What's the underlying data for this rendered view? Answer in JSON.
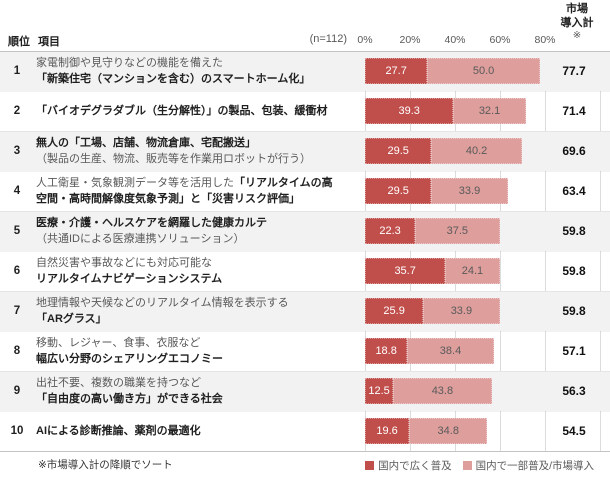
{
  "header": {
    "rank_label": "順位",
    "item_label": "項目",
    "sample_size": "(n=112)",
    "total_label_line1": "市場",
    "total_label_line2": "導入計",
    "total_label_note": "※"
  },
  "footnote": "※市場導入計の降順でソート",
  "legend": [
    {
      "label": "国内で広く普及",
      "color": "#c04f4c"
    },
    {
      "label": "国内で一部普及/市場導入",
      "color": "#dd9e9c"
    }
  ],
  "rows": [
    {
      "rank": "1",
      "lines": [
        [
          {
            "text": "家電制御や見守りなどの機能を備えた",
            "bold": false
          }
        ],
        [
          {
            "text": "「新築住宅（マンションを含む）のスマートホーム化」",
            "bold": true
          }
        ]
      ]
    },
    {
      "rank": "2",
      "lines": [
        [
          {
            "text": "「バイオデグラダブル（生分解性）」の製品、包装、緩衝材",
            "bold": true
          }
        ]
      ]
    },
    {
      "rank": "3",
      "lines": [
        [
          {
            "text": "無人の「工場、店舗、物流倉庫、宅配搬送」",
            "bold": true
          }
        ],
        [
          {
            "text": "（製品の生産、物流、販売等を作業用ロボットが行う）",
            "bold": false
          }
        ]
      ]
    },
    {
      "rank": "4",
      "lines": [
        [
          {
            "text": "人工衛星・気象観測データ等を活用した",
            "bold": false
          },
          {
            "text": "「リアルタイムの高",
            "bold": true
          }
        ],
        [
          {
            "text": "空間・高時間解像度気象予測」と「災害リスク評価」",
            "bold": true
          }
        ]
      ]
    },
    {
      "rank": "5",
      "lines": [
        [
          {
            "text": "医療・介護・ヘルスケアを網羅した健康カルテ",
            "bold": true
          }
        ],
        [
          {
            "text": "（共通IDによる医療連携ソリューション）",
            "bold": false
          }
        ]
      ]
    },
    {
      "rank": "6",
      "lines": [
        [
          {
            "text": "自然災害や事故などにも対応可能な",
            "bold": false
          }
        ],
        [
          {
            "text": "リアルタイムナビゲーションシステム",
            "bold": true
          }
        ]
      ]
    },
    {
      "rank": "7",
      "lines": [
        [
          {
            "text": "地理情報や天候などのリアルタイム情報を表示する",
            "bold": false
          }
        ],
        [
          {
            "text": "「ARグラス」",
            "bold": true
          }
        ]
      ]
    },
    {
      "rank": "8",
      "lines": [
        [
          {
            "text": "移動、レジャー、食事、衣服など",
            "bold": false
          }
        ],
        [
          {
            "text": "幅広い分野のシェアリングエコノミー",
            "bold": true
          }
        ]
      ]
    },
    {
      "rank": "9",
      "lines": [
        [
          {
            "text": "出社不要、複数の職業を持つなど",
            "bold": false
          }
        ],
        [
          {
            "text": "「自由度の高い働き方」ができる社会",
            "bold": true
          }
        ]
      ]
    },
    {
      "rank": "10",
      "lines": [
        [
          {
            "text": "AIによる診断推論、薬剤の最適化",
            "bold": true
          }
        ]
      ]
    }
  ],
  "chart_data": {
    "type": "bar",
    "orientation": "horizontal",
    "stacked": true,
    "title": "",
    "xlabel": "",
    "ylabel": "",
    "xlim": [
      0,
      80
    ],
    "x_ticks": [
      "0%",
      "20%",
      "40%",
      "60%",
      "80%"
    ],
    "grid": true,
    "legend_position": "bottom-right",
    "sample_size": "(n=112)",
    "totals_label": "市場導入計※",
    "sort_note": "※市場導入計の降順でソート",
    "categories": [
      "家電制御や見守りなどの機能を備えた「新築住宅（マンションを含む）のスマートホーム化」",
      "「バイオデグラダブル（生分解性）」の製品、包装、緩衝材",
      "無人の「工場、店舗、物流倉庫、宅配搬送」（製品の生産、物流、販売等を作業用ロボットが行う）",
      "人工衛星・気象観測データ等を活用した「リアルタイムの高空間・高時間解像度気象予測」と「災害リスク評価」",
      "医療・介護・ヘルスケアを網羅した健康カルテ（共通IDによる医療連携ソリューション）",
      "自然災害や事故などにも対応可能なリアルタイムナビゲーションシステム",
      "地理情報や天候などのリアルタイム情報を表示する「ARグラス」",
      "移動、レジャー、食事、衣服など幅広い分野のシェアリングエコノミー",
      "出社不要、複数の職業を持つなど「自由度の高い働き方」ができる社会",
      "AIによる診断推論、薬剤の最適化"
    ],
    "series": [
      {
        "name": "国内で広く普及",
        "color": "#c04f4c",
        "values": [
          27.7,
          39.3,
          29.5,
          29.5,
          22.3,
          35.7,
          25.9,
          18.8,
          12.5,
          19.6
        ]
      },
      {
        "name": "国内で一部普及/市場導入",
        "color": "#dd9e9c",
        "values": [
          50.0,
          32.1,
          40.2,
          33.9,
          37.5,
          24.1,
          33.9,
          38.4,
          43.8,
          34.8
        ]
      }
    ],
    "totals": [
      77.7,
      71.4,
      69.6,
      63.4,
      59.8,
      59.8,
      59.8,
      57.1,
      56.3,
      54.5
    ]
  }
}
